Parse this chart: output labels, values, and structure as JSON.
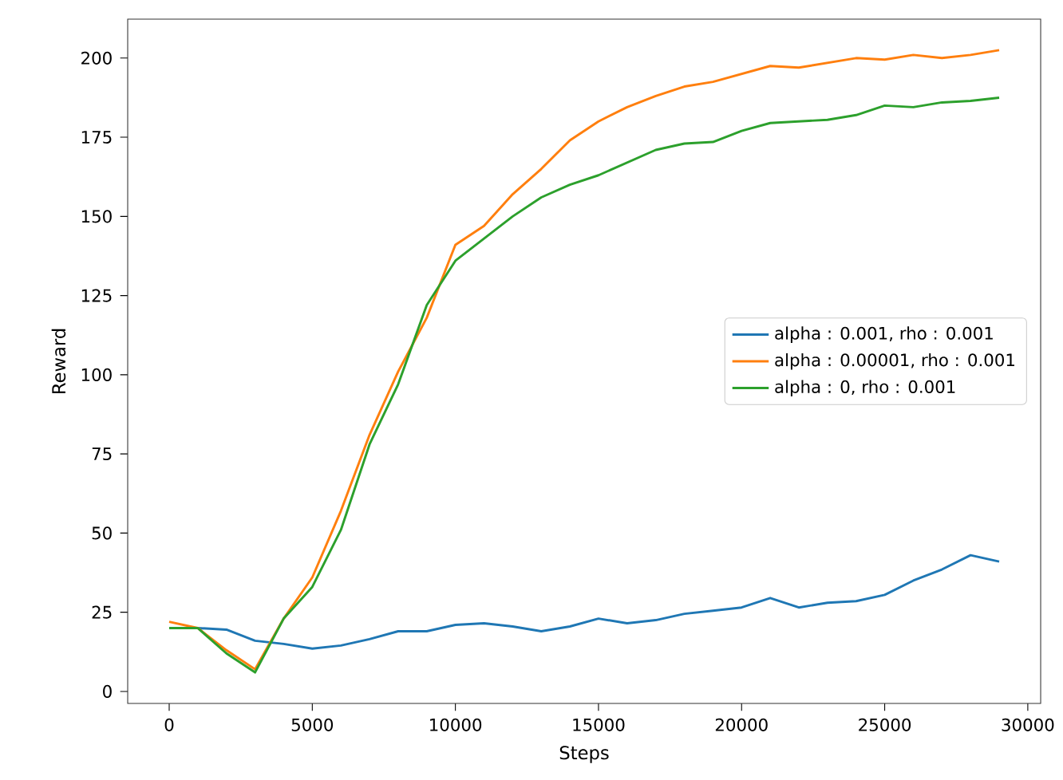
{
  "chart_data": {
    "type": "line",
    "xlabel": "Steps",
    "ylabel": "Reward",
    "x": [
      0,
      1000,
      2000,
      3000,
      4000,
      5000,
      6000,
      7000,
      8000,
      9000,
      10000,
      11000,
      12000,
      13000,
      14000,
      15000,
      16000,
      17000,
      18000,
      19000,
      20000,
      21000,
      22000,
      23000,
      24000,
      25000,
      26000,
      27000,
      28000,
      29000
    ],
    "series": [
      {
        "name": "alpha : 0.001, rho : 0.001",
        "color": "#1f77b4",
        "values": [
          null,
          20,
          19.5,
          16,
          15,
          13.5,
          14.5,
          16.5,
          19,
          19,
          21,
          21.5,
          20.5,
          19,
          20.5,
          23,
          21.5,
          22.5,
          24.5,
          25.5,
          26.5,
          29.5,
          26.5,
          28,
          28.5,
          30.5,
          35,
          38.5,
          43,
          41
        ]
      },
      {
        "name": "alpha : 0.00001, rho : 0.001",
        "color": "#ff7f0e",
        "values": [
          22,
          20,
          13,
          7,
          23,
          36,
          57,
          81,
          101,
          118,
          141,
          147,
          157,
          165,
          174,
          180,
          184.5,
          188,
          191,
          192.5,
          195,
          197.5,
          197,
          198.5,
          200,
          199.5,
          201,
          200,
          201,
          202.5
        ]
      },
      {
        "name": "alpha : 0, rho : 0.001",
        "color": "#2ca02c",
        "values": [
          20,
          20,
          12,
          6,
          23,
          33,
          51,
          78,
          97,
          122,
          136,
          143,
          150,
          156,
          160,
          163,
          167,
          171,
          173,
          173.5,
          177,
          179.5,
          180,
          180.5,
          182,
          185,
          184.5,
          186,
          186.5,
          187.5
        ]
      }
    ],
    "xlim": [
      -1450,
      30450
    ],
    "ylim": [
      -3.8,
      212.3
    ],
    "xticks": [
      0,
      5000,
      10000,
      15000,
      20000,
      25000,
      30000
    ],
    "yticks": [
      0,
      25,
      50,
      75,
      100,
      125,
      150,
      175,
      200
    ],
    "legend": "right",
    "grid": false,
    "marker": "none",
    "line_style": "solid"
  }
}
